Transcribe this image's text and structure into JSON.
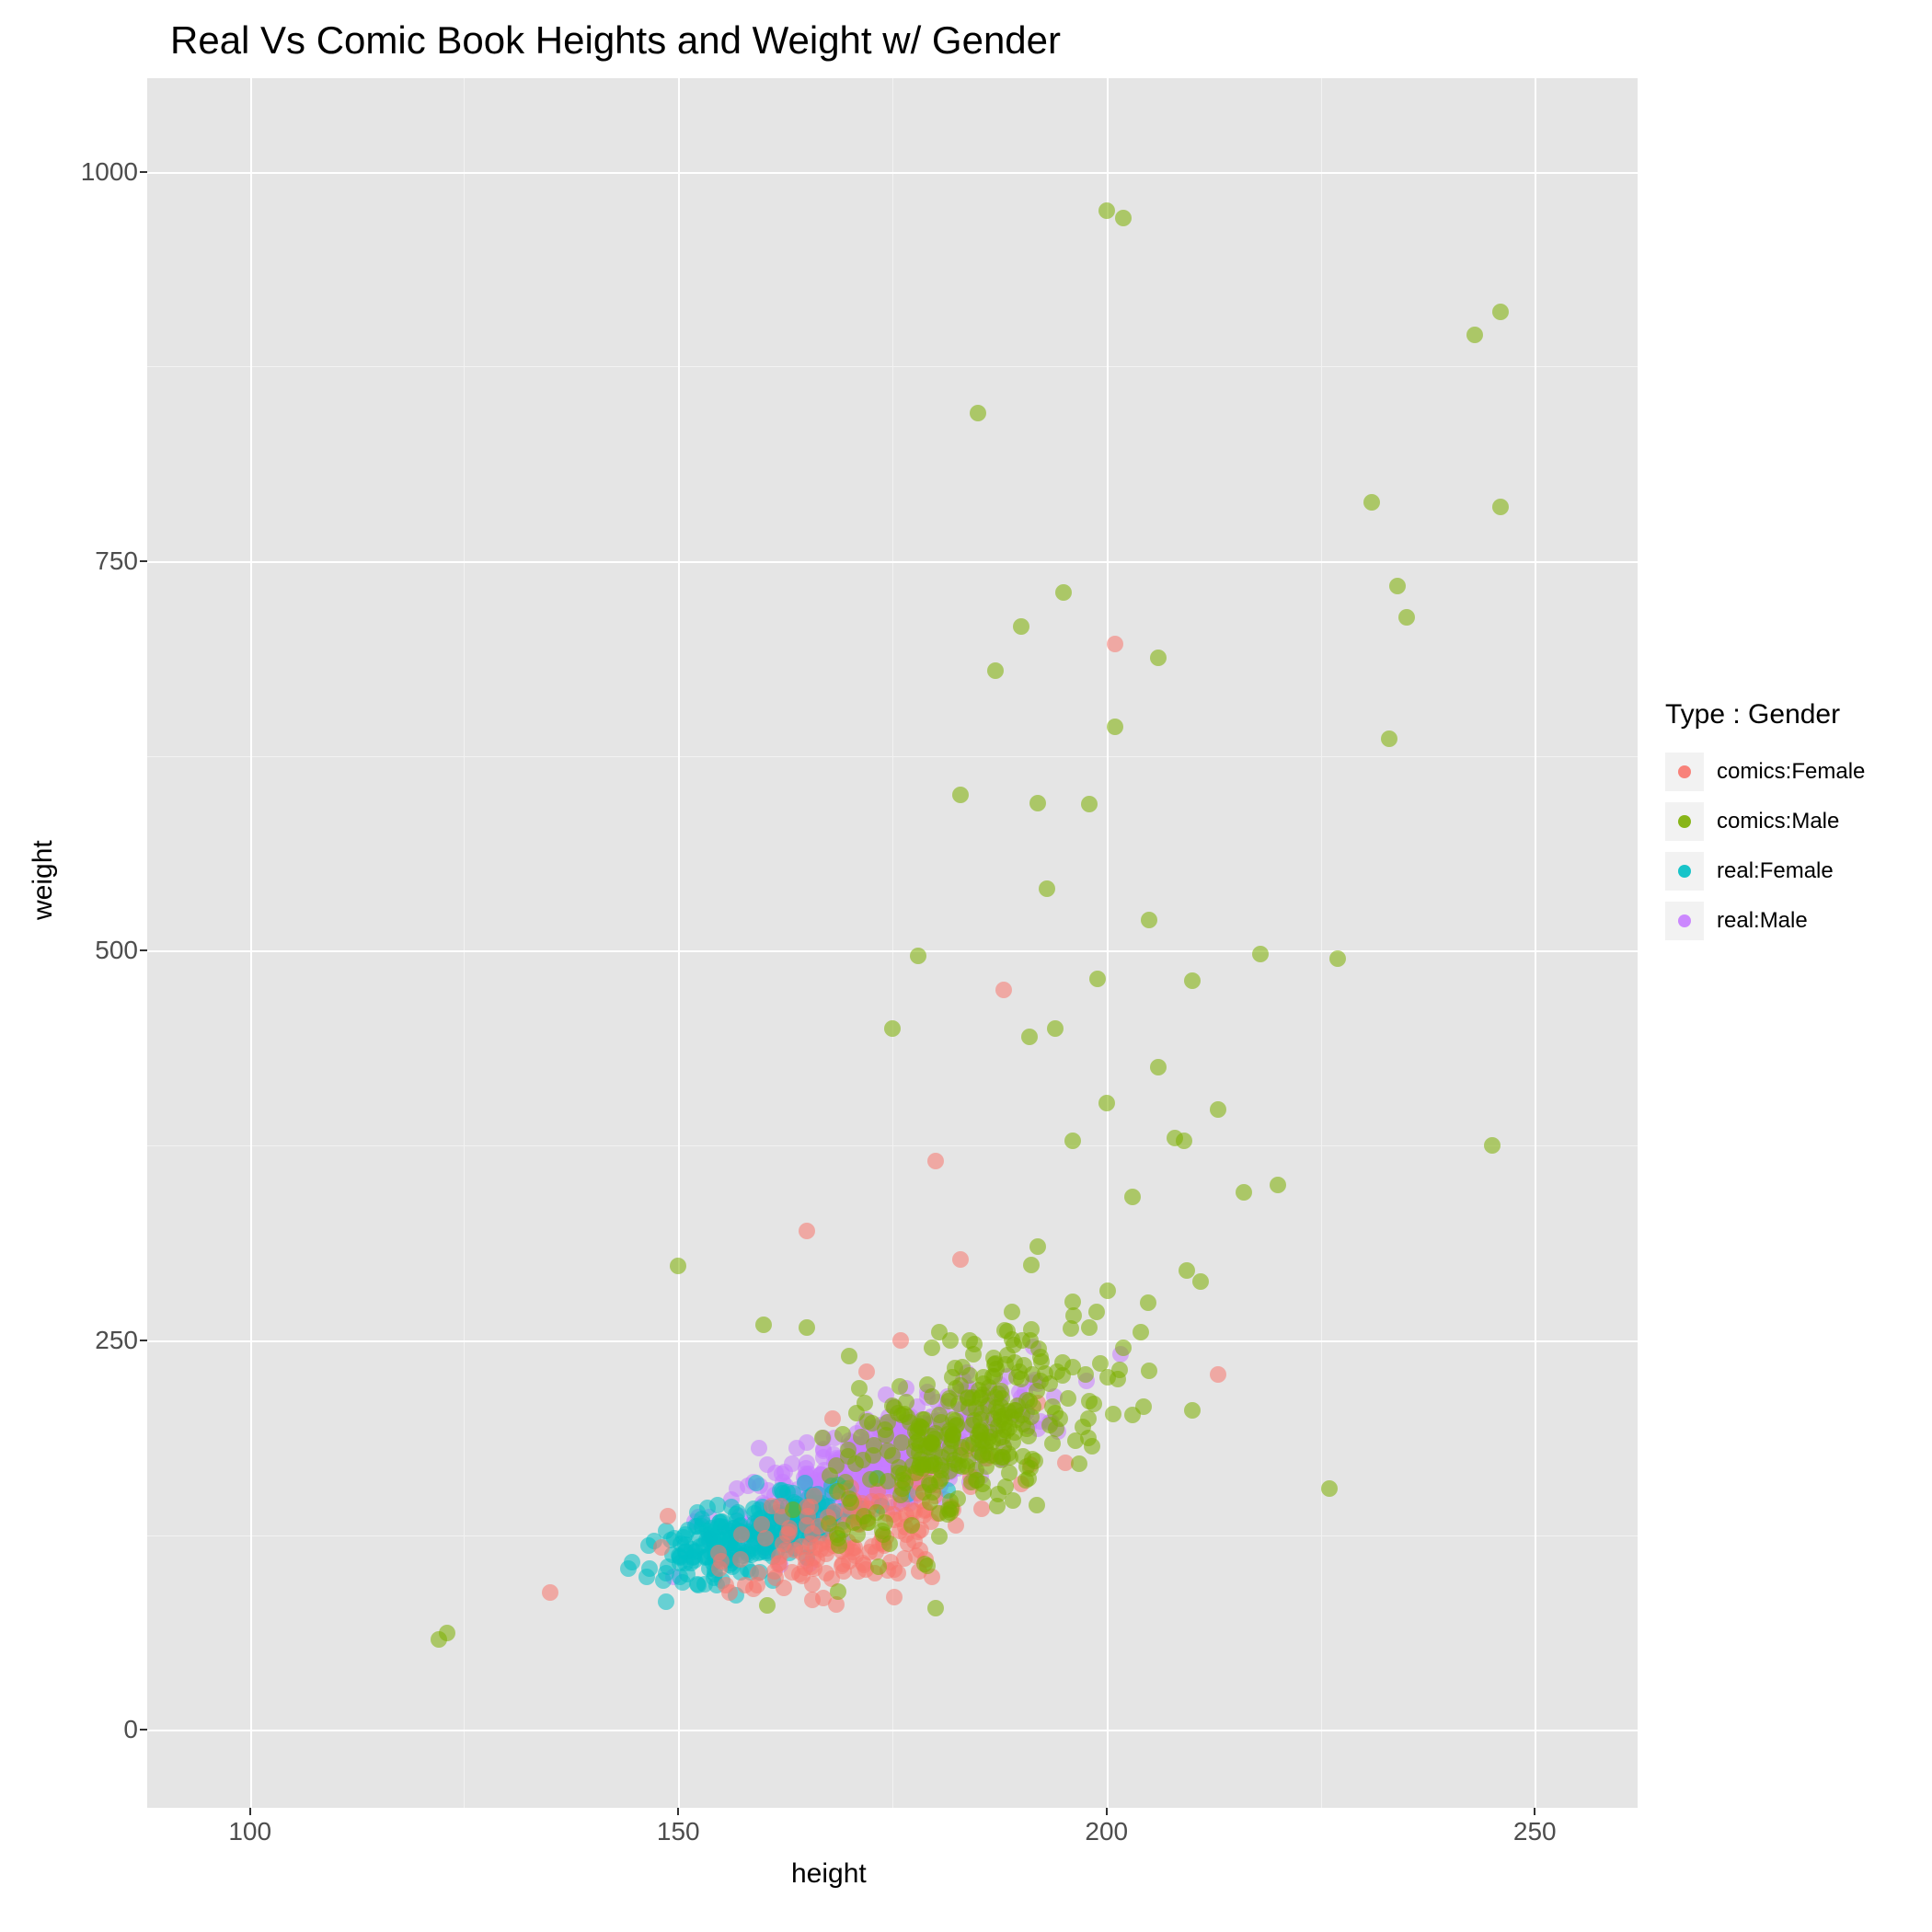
{
  "chart": {
    "type": "scatter",
    "title": "Real Vs Comic Book Heights and Weight w/ Gender",
    "xlabel": "height",
    "ylabel": "weight",
    "background_color": "#e5e5e5",
    "grid_major_color": "#ffffff",
    "grid_minor_color": "#f2f2f2",
    "xlim": [
      88,
      262
    ],
    "ylim": [
      -50,
      1060
    ],
    "x_major_ticks": [
      100,
      150,
      200,
      250
    ],
    "y_major_ticks": [
      0,
      250,
      500,
      750,
      1000
    ],
    "x_minor_ticks": [
      125,
      175,
      225
    ],
    "y_minor_ticks": [
      125,
      375,
      625,
      875
    ],
    "tick_fontsize": 28,
    "label_fontsize": 30,
    "title_fontsize": 42,
    "point_radius": 9,
    "point_opacity": 0.55,
    "legend": {
      "title": "Type : Gender",
      "items": [
        {
          "label": "comics:Female",
          "color": "#f8766d"
        },
        {
          "label": "comics:Male",
          "color": "#7cae00"
        },
        {
          "label": "real:Female",
          "color": "#00bfc4"
        },
        {
          "label": "real:Male",
          "color": "#c77cff"
        }
      ]
    },
    "series": [
      {
        "name": "real:Male",
        "color": "#c77cff",
        "cluster": {
          "n": 520,
          "x_mean": 174,
          "x_sd": 8,
          "y_slope": 2.1,
          "y_intercept": -195,
          "y_sd": 15
        },
        "extra": []
      },
      {
        "name": "real:Female",
        "color": "#00bfc4",
        "cluster": {
          "n": 260,
          "x_mean": 159,
          "x_sd": 6,
          "y_slope": 1.7,
          "y_intercept": -145,
          "y_sd": 12
        },
        "extra": []
      },
      {
        "name": "comics:Female",
        "color": "#f8766d",
        "cluster": {
          "n": 160,
          "x_mean": 170,
          "x_sd": 8,
          "y_slope": 1.4,
          "y_intercept": -115,
          "y_sd": 18
        },
        "extra": [
          [
            135,
            88
          ],
          [
            165,
            320
          ],
          [
            180,
            365
          ],
          [
            183,
            302
          ],
          [
            188,
            475
          ],
          [
            201,
            697
          ],
          [
            213,
            228
          ],
          [
            190,
            158
          ],
          [
            172,
            230
          ],
          [
            176,
            250
          ],
          [
            192,
            210
          ],
          [
            168,
            200
          ]
        ]
      },
      {
        "name": "comics:Male",
        "color": "#7cae00",
        "cluster": {
          "n": 320,
          "x_mean": 184,
          "x_sd": 8,
          "y_slope": 2.3,
          "y_intercept": -235,
          "y_sd": 28
        },
        "extra": [
          [
            122,
            58
          ],
          [
            123,
            62
          ],
          [
            150,
            298
          ],
          [
            160,
            260
          ],
          [
            175,
            450
          ],
          [
            178,
            497
          ],
          [
            180,
            78
          ],
          [
            183,
            600
          ],
          [
            184,
            250
          ],
          [
            185,
            845
          ],
          [
            187,
            680
          ],
          [
            190,
            708
          ],
          [
            191,
            445
          ],
          [
            192,
            595
          ],
          [
            193,
            540
          ],
          [
            194,
            450
          ],
          [
            195,
            730
          ],
          [
            196,
            378
          ],
          [
            198,
            594
          ],
          [
            199,
            482
          ],
          [
            200,
            975
          ],
          [
            200,
            402
          ],
          [
            201,
            644
          ],
          [
            202,
            970
          ],
          [
            203,
            342
          ],
          [
            205,
            520
          ],
          [
            206,
            425
          ],
          [
            206,
            688
          ],
          [
            208,
            380
          ],
          [
            209,
            378
          ],
          [
            210,
            481
          ],
          [
            211,
            288
          ],
          [
            213,
            398
          ],
          [
            216,
            345
          ],
          [
            218,
            498
          ],
          [
            220,
            350
          ],
          [
            226,
            155
          ],
          [
            227,
            495
          ],
          [
            231,
            788
          ],
          [
            233,
            636
          ],
          [
            234,
            734
          ],
          [
            235,
            714
          ],
          [
            243,
            895
          ],
          [
            245,
            375
          ],
          [
            246,
            785
          ],
          [
            246,
            910
          ],
          [
            165,
            258
          ],
          [
            170,
            240
          ],
          [
            196,
            275
          ],
          [
            189,
            268
          ],
          [
            192,
            310
          ],
          [
            198,
            258
          ],
          [
            204,
            255
          ],
          [
            210,
            205
          ]
        ]
      }
    ]
  }
}
